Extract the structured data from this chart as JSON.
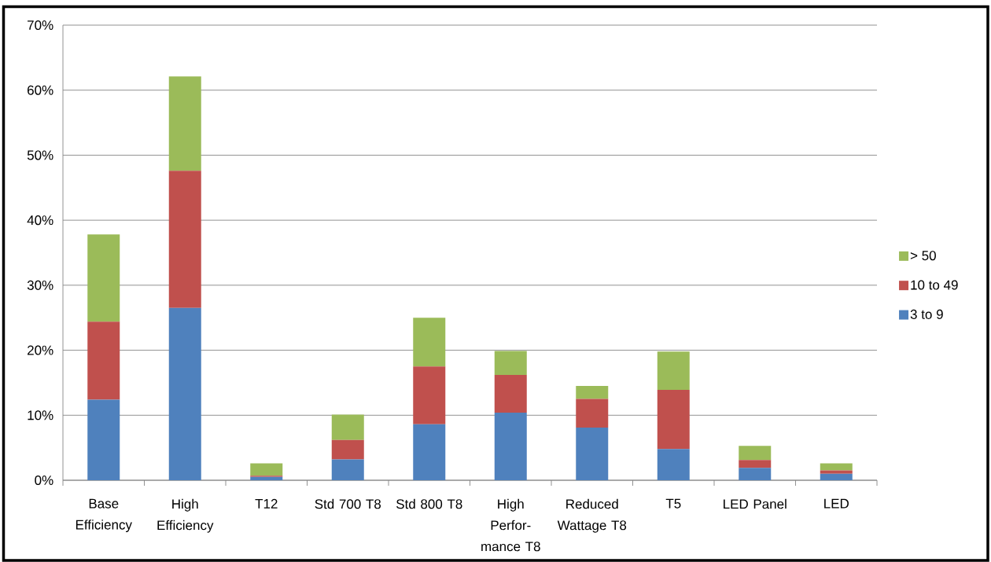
{
  "chart_data": {
    "type": "bar",
    "stacked": true,
    "categories": [
      "Base Efficiency",
      "High Efficiency",
      "T12",
      "Std 700 T8",
      "Std 800 T8",
      "High Perfor-mance T8",
      "Reduced Wattage T8",
      "T5",
      "LED Panel",
      "LED"
    ],
    "series": [
      {
        "name": "3 to 9",
        "color": "#4f81bd",
        "values": [
          12.4,
          26.5,
          0.5,
          3.2,
          8.6,
          10.4,
          8.1,
          4.8,
          1.9,
          1.0
        ]
      },
      {
        "name": "10 to 49",
        "color": "#c0504d",
        "values": [
          12.0,
          21.1,
          0.2,
          3.0,
          8.9,
          5.8,
          4.4,
          9.1,
          1.2,
          0.5
        ]
      },
      {
        "name": "> 50",
        "color": "#9bbb59",
        "values": [
          13.4,
          14.5,
          1.9,
          3.9,
          7.5,
          3.7,
          2.0,
          5.9,
          2.2,
          1.1
        ]
      }
    ],
    "ylim": [
      0,
      70
    ],
    "yticks": [
      {
        "value": 0,
        "label": "0%"
      },
      {
        "value": 10,
        "label": "10%"
      },
      {
        "value": 20,
        "label": "20%"
      },
      {
        "value": 30,
        "label": "30%"
      },
      {
        "value": 40,
        "label": "40%"
      },
      {
        "value": 50,
        "label": "50%"
      },
      {
        "value": 60,
        "label": "60%"
      },
      {
        "value": 70,
        "label": "70%"
      }
    ],
    "grid": "y",
    "legend": "right"
  }
}
